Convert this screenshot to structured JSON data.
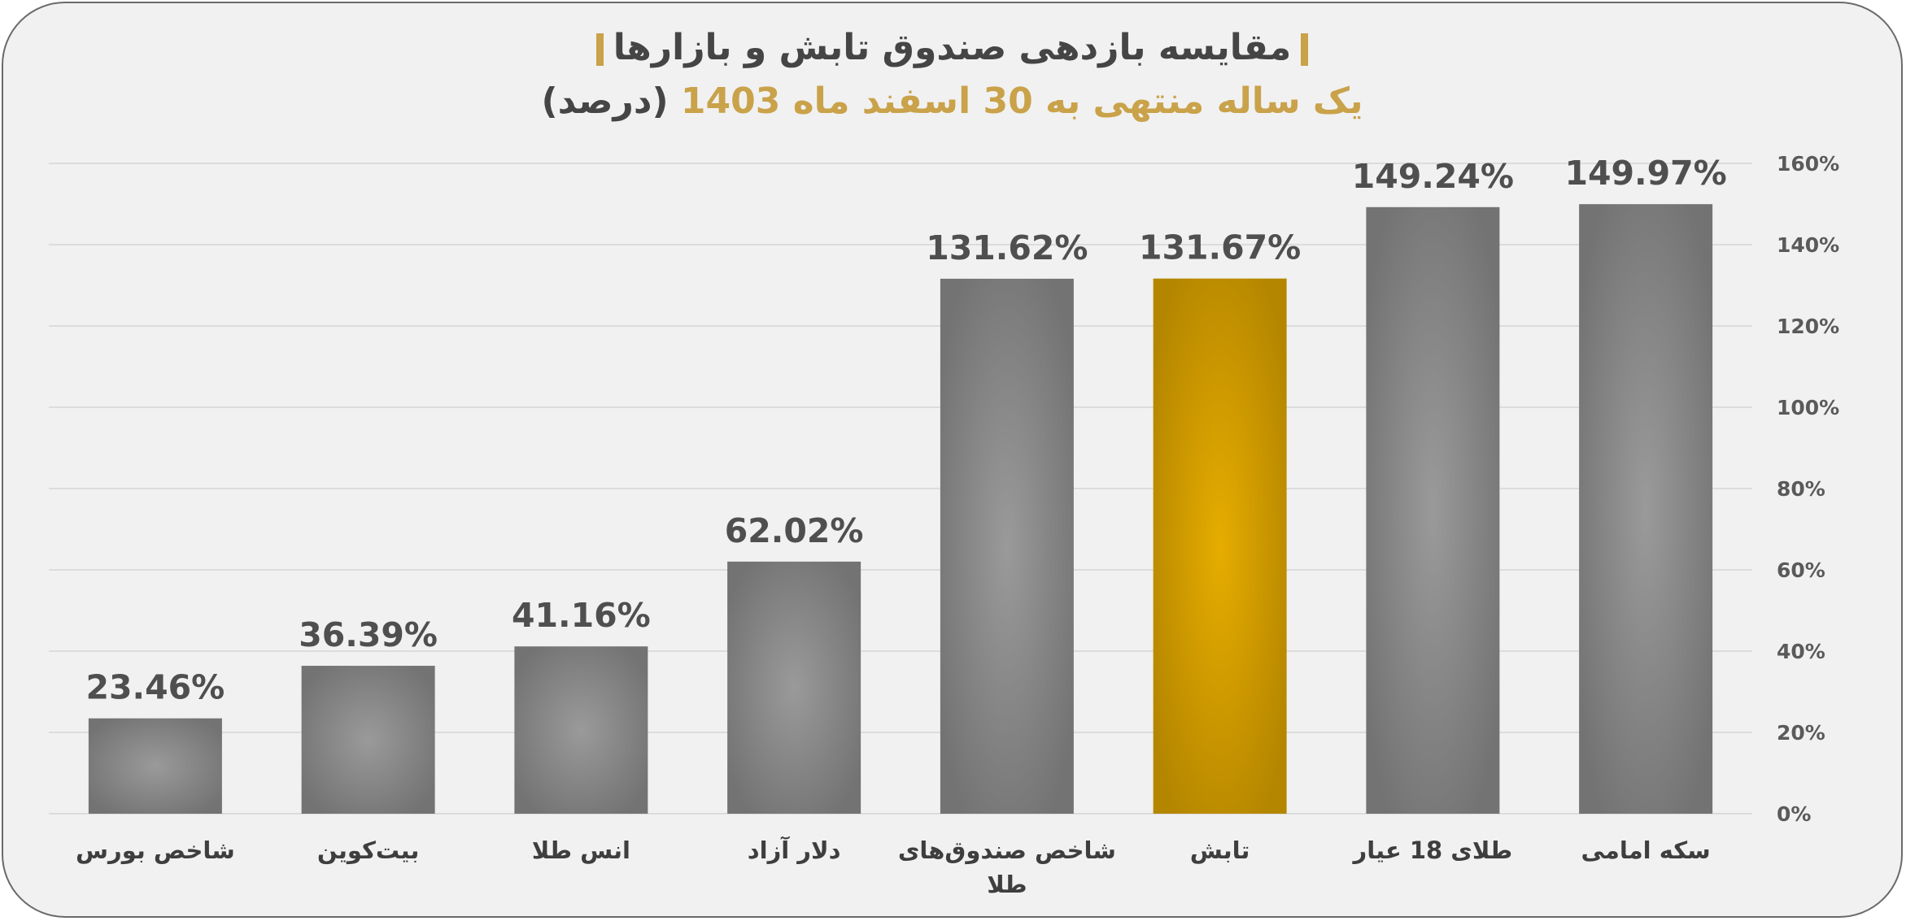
{
  "title": "مقایسه بازدهی صندوق تابش و بازارها",
  "subtitle": {
    "main": "یک ساله منتهی به 30 اسفند ماه 1403",
    "unit": "(درصد)"
  },
  "colors": {
    "accent_gold": "#c9a24a",
    "bar_gray": "#8a8a8a",
    "bar_highlight": "#e0aa00",
    "frame_bg": "#f1f1f1"
  },
  "chart_data": {
    "type": "bar",
    "title": "مقایسه بازدهی صندوق تابش و بازارها",
    "subtitle": "یک ساله منتهی به 30 اسفند ماه 1403 (درصد)",
    "categories": [
      "سکه امامی",
      "طلای 18 عیار",
      "تابش",
      "شاخص صندوق‌های طلا",
      "دلار آزاد",
      "انس طلا",
      "بیت‌کوین",
      "شاخص بورس"
    ],
    "category_lines": [
      [
        "سکه امامی"
      ],
      [
        "طلای 18 عیار"
      ],
      [
        "تابش"
      ],
      [
        "شاخص صندوق‌های",
        "طلا"
      ],
      [
        "دلار آزاد"
      ],
      [
        "انس طلا"
      ],
      [
        "بیت‌کوین"
      ],
      [
        "شاخص بورس"
      ]
    ],
    "values": [
      149.97,
      149.24,
      131.67,
      131.62,
      62.02,
      41.16,
      36.39,
      23.46
    ],
    "value_labels": [
      "149.97%",
      "149.24%",
      "131.67%",
      "131.62%",
      "62.02%",
      "41.16%",
      "36.39%",
      "23.46%"
    ],
    "highlight_index": 2,
    "ylim": [
      0,
      160
    ],
    "yticks": [
      0,
      20,
      40,
      60,
      80,
      100,
      120,
      140,
      160
    ],
    "ytick_labels": [
      "0%",
      "20%",
      "40%",
      "60%",
      "80%",
      "100%",
      "120%",
      "140%",
      "160%"
    ],
    "y_axis_side": "right",
    "category_order": "right-to-left",
    "grid": true,
    "legend": "none",
    "xlabel": "",
    "ylabel": ""
  }
}
